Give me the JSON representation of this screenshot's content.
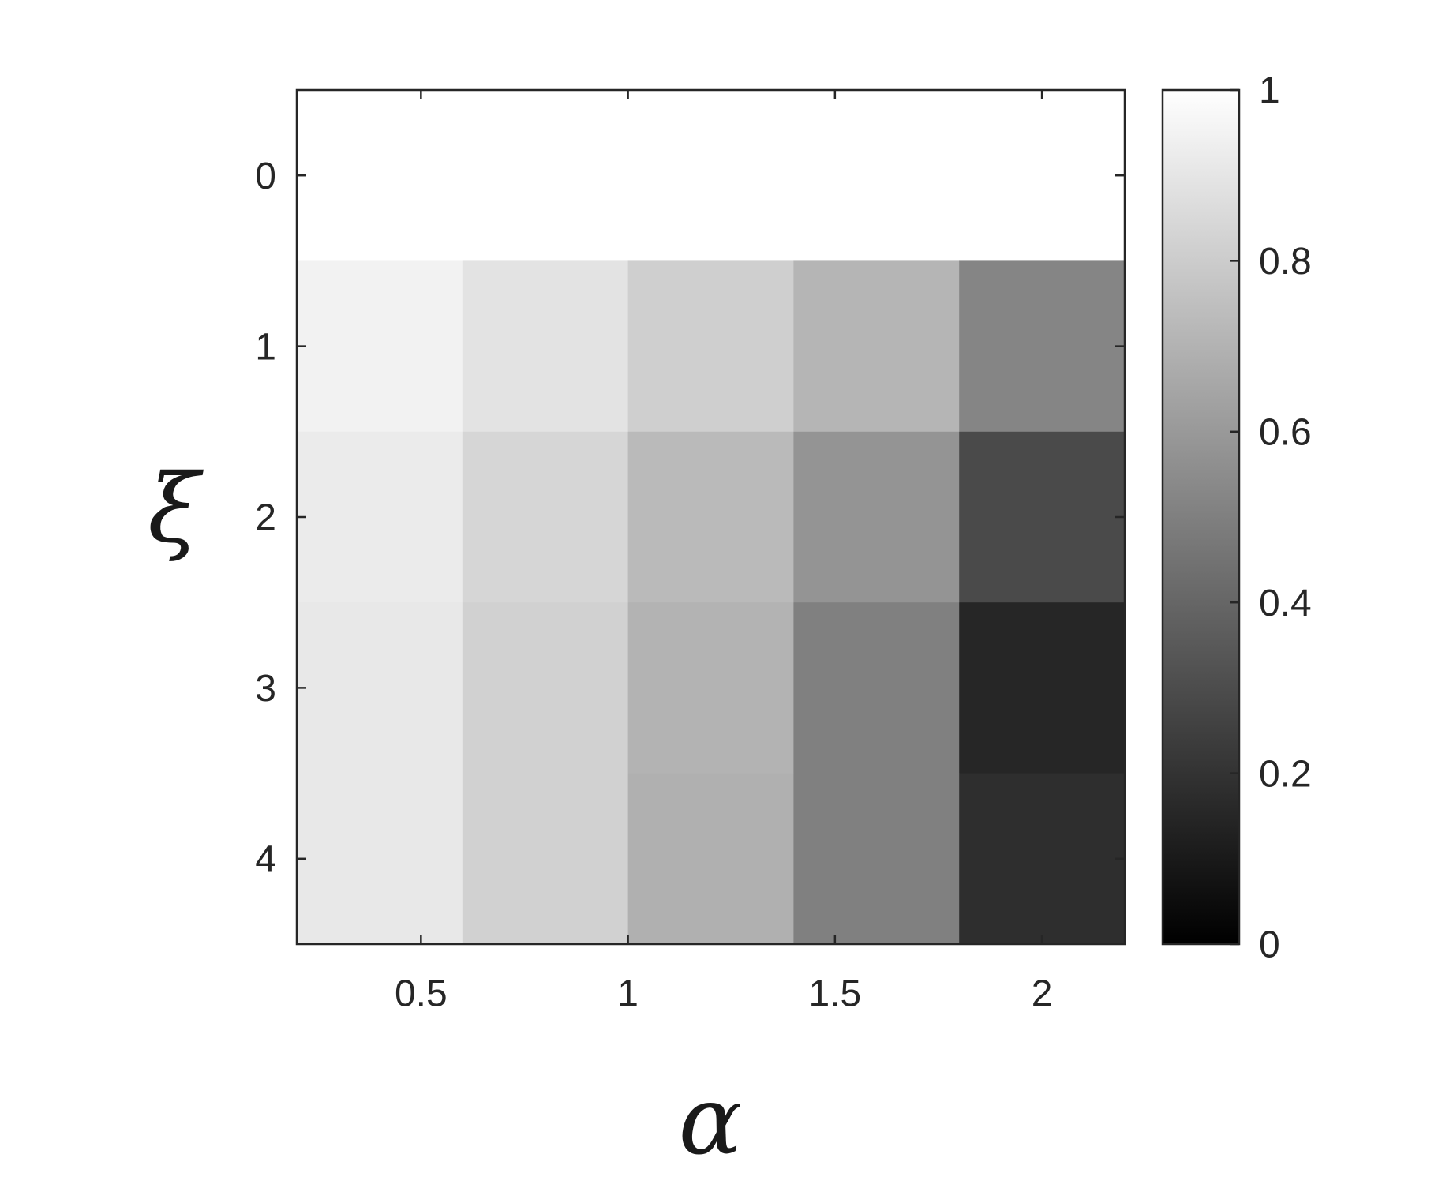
{
  "chart_data": {
    "type": "heatmap",
    "xlabel": "α",
    "ylabel": "ξ",
    "x": [
      0.4,
      0.8,
      1.2,
      1.6,
      2.0
    ],
    "y": [
      0,
      1,
      2,
      3,
      4
    ],
    "z": [
      [
        1,
        1,
        1,
        1,
        1
      ],
      [
        0.95,
        0.89,
        0.81,
        0.71,
        0.52
      ],
      [
        0.92,
        0.84,
        0.73,
        0.58,
        0.29
      ],
      [
        0.91,
        0.82,
        0.7,
        0.5,
        0.15
      ],
      [
        0.91,
        0.82,
        0.69,
        0.5,
        0.18
      ]
    ],
    "xlim": [
      0.2,
      2.2
    ],
    "xticks": [
      0.5,
      1,
      1.5,
      2
    ],
    "ylim": [
      -0.5,
      4.5
    ],
    "yticks": [
      0,
      1,
      2,
      3,
      4
    ],
    "y_reversed": true,
    "colormap": "gray",
    "colorbar": {
      "clim": [
        0,
        1
      ],
      "ticks": [
        0,
        0.2,
        0.4,
        0.6,
        0.8,
        1
      ]
    }
  }
}
